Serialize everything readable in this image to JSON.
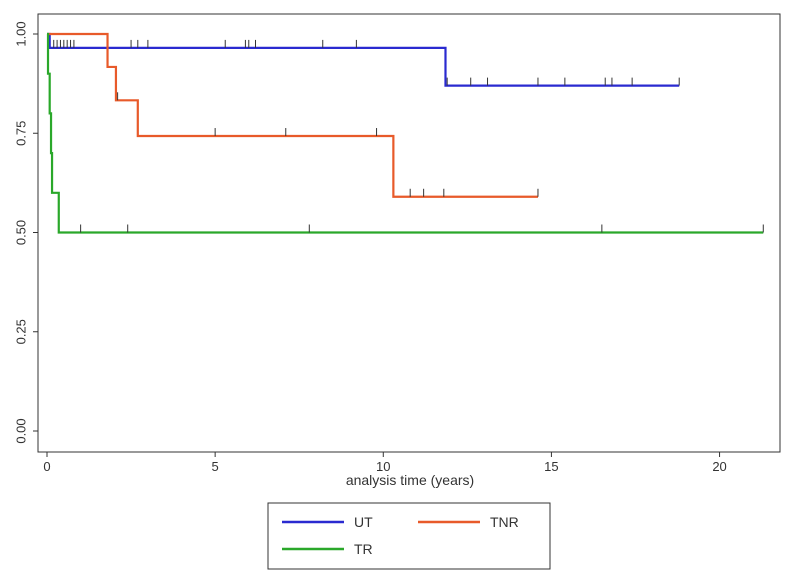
{
  "chart_data": {
    "type": "line",
    "step": true,
    "xlabel": "analysis time (years)",
    "ylabel": "",
    "xlim": [
      0,
      21.5
    ],
    "ylim": [
      0,
      1
    ],
    "x_ticks": [
      "0",
      "5",
      "10",
      "15",
      "20"
    ],
    "y_ticks": [
      "0.00",
      "0.25",
      "0.50",
      "0.75",
      "1.00"
    ],
    "grid": true,
    "legend_position": "bottom",
    "series": [
      {
        "name": "UT",
        "color": "#2a2ad0",
        "steps": [
          [
            0,
            1.0
          ],
          [
            0.08,
            0.965
          ],
          [
            11.85,
            0.87
          ],
          [
            18.8,
            0.87
          ]
        ],
        "censored": [
          0.2,
          0.3,
          0.4,
          0.5,
          0.6,
          0.7,
          0.8,
          2.5,
          2.7,
          3.0,
          5.3,
          5.9,
          6.0,
          6.2,
          8.2,
          9.2,
          11.9,
          12.6,
          13.1,
          14.6,
          15.4,
          16.6,
          16.8,
          17.4,
          18.8
        ]
      },
      {
        "name": "TNR",
        "color": "#e85a2a",
        "steps": [
          [
            0,
            1.0
          ],
          [
            1.8,
            0.917
          ],
          [
            2.05,
            0.833
          ],
          [
            2.7,
            0.743
          ],
          [
            10.3,
            0.59
          ],
          [
            14.6,
            0.59
          ]
        ],
        "censored": [
          2.1,
          5.0,
          7.1,
          9.8,
          10.8,
          11.2,
          11.8,
          14.6
        ]
      },
      {
        "name": "TR",
        "color": "#2aa82a",
        "steps": [
          [
            0,
            1.0
          ],
          [
            0.03,
            0.9
          ],
          [
            0.08,
            0.8
          ],
          [
            0.12,
            0.7
          ],
          [
            0.15,
            0.6
          ],
          [
            0.35,
            0.5
          ],
          [
            21.3,
            0.5
          ]
        ],
        "censored": [
          1.0,
          2.4,
          7.8,
          16.5,
          21.3
        ]
      }
    ]
  }
}
